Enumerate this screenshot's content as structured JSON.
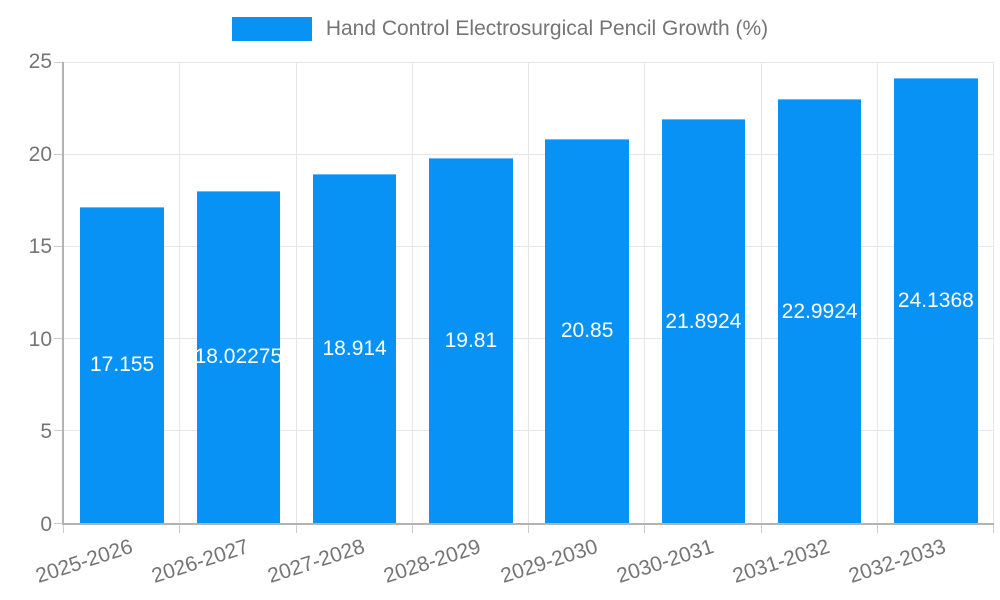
{
  "legend": {
    "label": "Hand Control Electrosurgical Pencil Growth (%)"
  },
  "colors": {
    "bar": "#0892f5",
    "bar_label_text": "#ffffff",
    "axis_text": "#757575",
    "gridline": "#e6e6e6",
    "axis_line": "#b3b3b3",
    "tick": "#cccccc",
    "background": "#ffffff"
  },
  "chart_data": {
    "type": "bar",
    "title": "",
    "legend": [
      "Hand Control Electrosurgical Pencil Growth (%)"
    ],
    "legend_position": "top",
    "categories": [
      "2025-2026",
      "2026-2027",
      "2027-2028",
      "2028-2029",
      "2029-2030",
      "2030-2031",
      "2031-2032",
      "2032-2033"
    ],
    "series": [
      {
        "name": "Hand Control Electrosurgical Pencil Growth (%)",
        "values": [
          17.155,
          18.02275,
          18.914,
          19.81,
          20.85,
          21.8924,
          22.9924,
          24.1368
        ]
      }
    ],
    "value_labels": [
      "17.155",
      "18.02275",
      "18.914",
      "19.81",
      "20.85",
      "21.8924",
      "22.9924",
      "24.1368"
    ],
    "xlabel": "",
    "ylabel": "",
    "ylim": [
      0,
      25
    ],
    "yticks": [
      0,
      5,
      10,
      15,
      20,
      25
    ],
    "grid": true
  }
}
